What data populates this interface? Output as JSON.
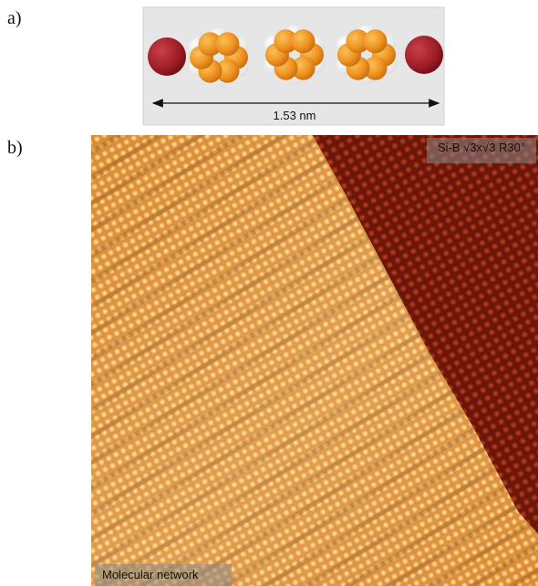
{
  "panel_a": {
    "label": "a)",
    "scale_label": "1.53 nm"
  },
  "panel_b": {
    "label": "b)",
    "substrate_label": "Si-B √3x√3 R30°",
    "network_label": "Molecular network"
  }
}
